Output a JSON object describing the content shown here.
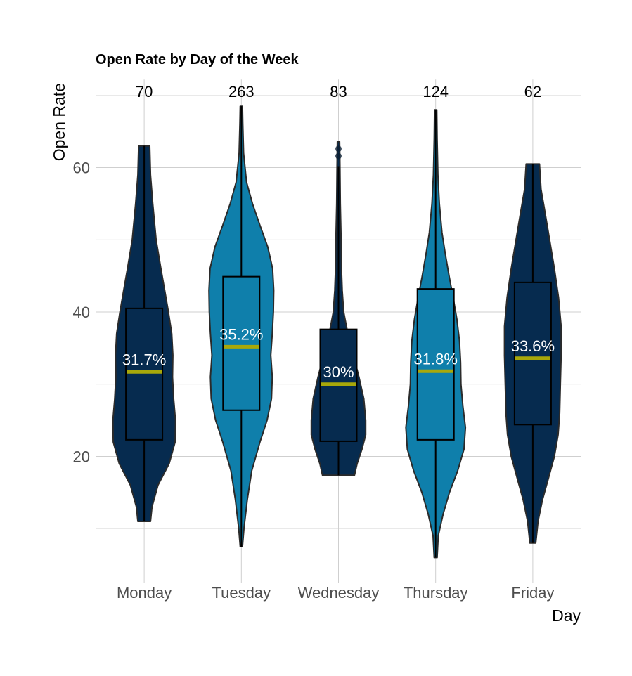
{
  "chart_data": {
    "type": "violin",
    "title": "Open Rate by Day of the Week",
    "xlabel": "Day",
    "ylabel": "Open Rate",
    "ylim": [
      3,
      72
    ],
    "yticks": [
      20,
      40,
      60
    ],
    "grid": true,
    "colors": {
      "dark": "#062b4f",
      "light": "#0f7fab",
      "median": "#a8a80a"
    },
    "categories": [
      {
        "name": "Monday",
        "count": "70",
        "median": 31.7,
        "median_label": "31.7%",
        "q1": 22.3,
        "q3": 40.5,
        "min": 11,
        "max": 63,
        "fill": "dark",
        "outliers": [],
        "density": [
          [
            11,
            0.17
          ],
          [
            13,
            0.21
          ],
          [
            16,
            0.37
          ],
          [
            19,
            0.67
          ],
          [
            22,
            0.83
          ],
          [
            25,
            0.84
          ],
          [
            28,
            0.79
          ],
          [
            31,
            0.76
          ],
          [
            34,
            0.77
          ],
          [
            37,
            0.74
          ],
          [
            40,
            0.65
          ],
          [
            43,
            0.55
          ],
          [
            46,
            0.45
          ],
          [
            50,
            0.32
          ],
          [
            55,
            0.23
          ],
          [
            59,
            0.17
          ],
          [
            63,
            0.15
          ]
        ]
      },
      {
        "name": "Tuesday",
        "count": "263",
        "median": 35.2,
        "median_label": "35.2%",
        "q1": 26.4,
        "q3": 44.9,
        "min": 7.5,
        "max": 68.5,
        "fill": "light",
        "outliers": [],
        "density": [
          [
            7.5,
            0.03
          ],
          [
            10,
            0.07
          ],
          [
            14,
            0.16
          ],
          [
            18,
            0.28
          ],
          [
            22,
            0.5
          ],
          [
            25,
            0.69
          ],
          [
            28,
            0.81
          ],
          [
            31,
            0.83
          ],
          [
            34,
            0.79
          ],
          [
            37,
            0.83
          ],
          [
            40,
            0.86
          ],
          [
            43,
            0.87
          ],
          [
            46,
            0.84
          ],
          [
            49,
            0.71
          ],
          [
            52,
            0.5
          ],
          [
            55,
            0.3
          ],
          [
            58,
            0.14
          ],
          [
            62,
            0.06
          ],
          [
            66,
            0.04
          ],
          [
            68.5,
            0.03
          ]
        ]
      },
      {
        "name": "Wednesday",
        "count": "83",
        "median": 30,
        "median_label": "30%",
        "q1": 22.1,
        "q3": 37.6,
        "min": 17.4,
        "max": 60.2,
        "fill": "dark",
        "outliers": [
          61.6,
          62.6
        ],
        "density": [
          [
            17.4,
            0.43
          ],
          [
            19,
            0.5
          ],
          [
            21,
            0.63
          ],
          [
            23,
            0.73
          ],
          [
            25,
            0.73
          ],
          [
            28,
            0.68
          ],
          [
            31,
            0.55
          ],
          [
            34,
            0.4
          ],
          [
            37,
            0.25
          ],
          [
            40,
            0.14
          ],
          [
            43,
            0.1
          ],
          [
            46,
            0.08
          ],
          [
            50,
            0.07
          ],
          [
            55,
            0.05
          ],
          [
            60,
            0.04
          ],
          [
            63.6,
            0.03
          ]
        ]
      },
      {
        "name": "Thursday",
        "count": "124",
        "median": 31.8,
        "median_label": "31.8%",
        "q1": 22.3,
        "q3": 43.2,
        "min": 6,
        "max": 68,
        "fill": "light",
        "outliers": [],
        "density": [
          [
            6,
            0.04
          ],
          [
            9,
            0.07
          ],
          [
            12,
            0.2
          ],
          [
            15,
            0.37
          ],
          [
            18,
            0.59
          ],
          [
            21,
            0.76
          ],
          [
            24,
            0.8
          ],
          [
            27,
            0.73
          ],
          [
            30,
            0.68
          ],
          [
            33,
            0.67
          ],
          [
            36,
            0.64
          ],
          [
            39,
            0.57
          ],
          [
            42,
            0.47
          ],
          [
            45,
            0.36
          ],
          [
            48,
            0.26
          ],
          [
            51,
            0.17
          ],
          [
            55,
            0.1
          ],
          [
            59,
            0.06
          ],
          [
            64,
            0.04
          ],
          [
            68,
            0.03
          ]
        ]
      },
      {
        "name": "Friday",
        "count": "62",
        "median": 33.6,
        "median_label": "33.6%",
        "q1": 24.4,
        "q3": 44.1,
        "min": 8,
        "max": 60.5,
        "fill": "dark",
        "outliers": [],
        "density": [
          [
            8,
            0.08
          ],
          [
            11,
            0.14
          ],
          [
            14,
            0.26
          ],
          [
            17,
            0.42
          ],
          [
            20,
            0.58
          ],
          [
            23,
            0.68
          ],
          [
            26,
            0.72
          ],
          [
            30,
            0.74
          ],
          [
            34,
            0.76
          ],
          [
            38,
            0.76
          ],
          [
            42,
            0.69
          ],
          [
            46,
            0.58
          ],
          [
            50,
            0.45
          ],
          [
            54,
            0.32
          ],
          [
            57,
            0.22
          ],
          [
            60.5,
            0.18
          ]
        ]
      }
    ]
  }
}
